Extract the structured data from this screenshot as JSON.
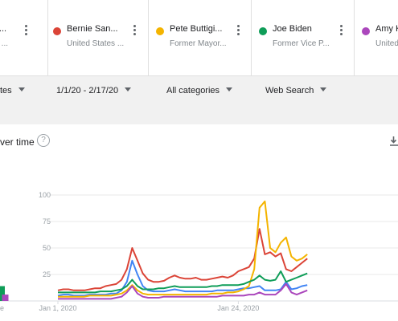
{
  "terms": [
    {
      "name": "n W...",
      "subtitle": "ates ...",
      "color": "#4285f4"
    },
    {
      "name": "Bernie San...",
      "subtitle": "United States ...",
      "color": "#db4437"
    },
    {
      "name": "Pete Buttigi...",
      "subtitle": "Former Mayor...",
      "color": "#f4b400"
    },
    {
      "name": "Joe Biden",
      "subtitle": "Former Vice P...",
      "color": "#0f9d58"
    },
    {
      "name": "Amy K",
      "subtitle": "United",
      "color": "#ab47bc"
    }
  ],
  "filters": {
    "region": "tes",
    "date_range": "1/1/20 - 2/17/20",
    "category": "All categories",
    "search_type": "Web Search"
  },
  "card": {
    "title": "ver time",
    "help_glyph": "?"
  },
  "chart_data": {
    "type": "line",
    "ylim": [
      0,
      100
    ],
    "yticks": [
      "100",
      "75",
      "50",
      "25"
    ],
    "xticks": [
      "Jan 1, 2020",
      "Jan 24, 2020"
    ],
    "left_bar_label": "e",
    "x": [
      1,
      2,
      3,
      4,
      5,
      6,
      7,
      8,
      9,
      10,
      11,
      12,
      13,
      14,
      15,
      16,
      17,
      18,
      19,
      20,
      21,
      22,
      23,
      24,
      25,
      26,
      27,
      28,
      29,
      30,
      31,
      32,
      33,
      34,
      35,
      36,
      37,
      38,
      39,
      40,
      41,
      42,
      43,
      44,
      45,
      46,
      47,
      48
    ],
    "series": [
      {
        "color": "#db4437",
        "values": [
          10,
          11,
          11,
          10,
          10,
          10,
          11,
          12,
          12,
          14,
          15,
          16,
          20,
          30,
          50,
          38,
          26,
          20,
          18,
          18,
          19,
          22,
          24,
          22,
          21,
          21,
          22,
          20,
          20,
          21,
          22,
          23,
          22,
          24,
          28,
          30,
          32,
          40,
          68,
          44,
          46,
          42,
          45,
          30,
          28,
          32,
          36,
          40
        ]
      },
      {
        "color": "#4285f4",
        "values": [
          5,
          6,
          6,
          5,
          5,
          5,
          6,
          6,
          6,
          6,
          7,
          7,
          10,
          18,
          38,
          25,
          14,
          10,
          9,
          9,
          9,
          10,
          11,
          10,
          9,
          9,
          9,
          9,
          9,
          9,
          10,
          10,
          10,
          10,
          11,
          12,
          12,
          13,
          14,
          10,
          10,
          10,
          11,
          18,
          11,
          12,
          14,
          15
        ]
      },
      {
        "color": "#f4b400",
        "values": [
          4,
          4,
          4,
          4,
          4,
          4,
          5,
          5,
          5,
          5,
          5,
          6,
          7,
          10,
          15,
          10,
          7,
          6,
          6,
          6,
          6,
          6,
          6,
          6,
          6,
          6,
          6,
          6,
          6,
          7,
          7,
          7,
          8,
          8,
          9,
          11,
          14,
          30,
          88,
          94,
          50,
          46,
          55,
          60,
          42,
          38,
          40,
          44
        ]
      },
      {
        "color": "#0f9d58",
        "values": [
          8,
          8,
          8,
          8,
          8,
          8,
          8,
          8,
          9,
          9,
          9,
          10,
          11,
          14,
          20,
          14,
          11,
          11,
          11,
          12,
          12,
          13,
          14,
          13,
          13,
          13,
          13,
          13,
          13,
          14,
          14,
          15,
          15,
          15,
          15,
          16,
          18,
          20,
          24,
          20,
          19,
          20,
          28,
          18,
          20,
          22,
          24,
          26
        ]
      },
      {
        "color": "#ab47bc",
        "values": [
          2,
          2,
          2,
          2,
          2,
          2,
          2,
          2,
          2,
          2,
          2,
          3,
          4,
          8,
          14,
          7,
          4,
          3,
          3,
          3,
          4,
          4,
          4,
          4,
          4,
          4,
          4,
          4,
          4,
          4,
          4,
          5,
          5,
          5,
          5,
          5,
          6,
          6,
          8,
          6,
          6,
          6,
          10,
          16,
          8,
          6,
          8,
          10
        ]
      }
    ],
    "left_bars": [
      {
        "color": "#0f9d58",
        "value": 14
      },
      {
        "color": "#ab47bc",
        "value": 6
      }
    ]
  }
}
